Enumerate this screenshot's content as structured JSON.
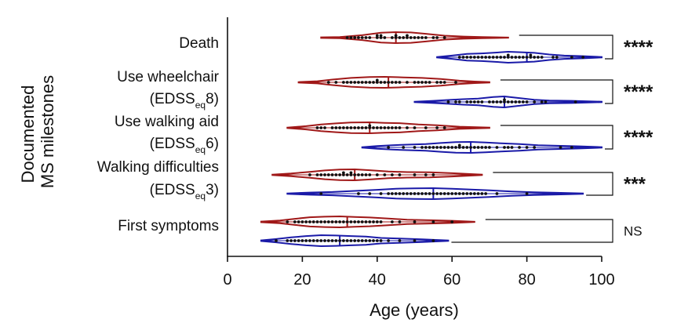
{
  "chart_data": {
    "type": "violin",
    "ylabel_lines": [
      "Documented",
      "MS milestones"
    ],
    "xlabel": "Age (years)",
    "xlim": [
      0,
      100
    ],
    "xticks": [
      "0",
      "20",
      "40",
      "60",
      "80",
      "100"
    ],
    "colors": {
      "red": "#a01818",
      "blue": "#1a1aa8"
    },
    "categories": [
      {
        "label_lines": [
          "Death"
        ],
        "significance": "****",
        "series": [
          {
            "color": "red",
            "min": 25,
            "max": 75,
            "median": 45,
            "kde": [
              [
                25,
                0.05
              ],
              [
                30,
                0.12
              ],
              [
                36,
                0.45
              ],
              [
                41,
                0.9
              ],
              [
                45,
                1.0
              ],
              [
                49,
                0.95
              ],
              [
                53,
                0.7
              ],
              [
                58,
                0.35
              ],
              [
                63,
                0.2
              ],
              [
                68,
                0.12
              ],
              [
                75,
                0.02
              ]
            ],
            "points": [
              32,
              33,
              34,
              35,
              36,
              37,
              38,
              40,
              40,
              41,
              41,
              42,
              44,
              45,
              45,
              46,
              47,
              48,
              48,
              49,
              50,
              51,
              52,
              53,
              55,
              56,
              58
            ]
          },
          {
            "color": "blue",
            "min": 56,
            "max": 100,
            "median": 80,
            "kde": [
              [
                56,
                0.05
              ],
              [
                60,
                0.3
              ],
              [
                64,
                0.6
              ],
              [
                68,
                0.7
              ],
              [
                72,
                0.85
              ],
              [
                75,
                1.0
              ],
              [
                79,
                0.9
              ],
              [
                82,
                0.8
              ],
              [
                86,
                0.5
              ],
              [
                90,
                0.3
              ],
              [
                95,
                0.2
              ],
              [
                100,
                0.05
              ]
            ],
            "points": [
              62,
              63,
              64,
              65,
              66,
              67,
              68,
              69,
              70,
              71,
              72,
              73,
              74,
              75,
              75,
              76,
              77,
              78,
              79,
              80,
              81,
              81,
              82,
              83,
              84,
              87,
              88,
              92,
              95
            ]
          }
        ]
      },
      {
        "label_lines": [
          "Use wheelchair",
          "(EDSS|eq|8)"
        ],
        "significance": "****",
        "series": [
          {
            "color": "red",
            "min": 19,
            "max": 70,
            "median": 43,
            "kde": [
              [
                19,
                0.05
              ],
              [
                24,
                0.2
              ],
              [
                28,
                0.5
              ],
              [
                33,
                0.8
              ],
              [
                38,
                0.95
              ],
              [
                42,
                1.0
              ],
              [
                47,
                0.9
              ],
              [
                52,
                0.8
              ],
              [
                57,
                0.6
              ],
              [
                62,
                0.3
              ],
              [
                66,
                0.15
              ],
              [
                70,
                0.04
              ]
            ],
            "points": [
              27,
              29,
              31,
              32,
              33,
              34,
              35,
              36,
              37,
              38,
              39,
              40,
              40,
              41,
              42,
              43,
              44,
              45,
              46,
              48,
              50,
              51,
              52,
              53,
              54,
              56,
              57,
              58,
              61
            ]
          },
          {
            "color": "blue",
            "min": 50,
            "max": 100,
            "median": 74,
            "kde": [
              [
                50,
                0.05
              ],
              [
                55,
                0.2
              ],
              [
                59,
                0.35
              ],
              [
                63,
                0.5
              ],
              [
                67,
                0.6
              ],
              [
                71,
                0.9
              ],
              [
                74,
                1.0
              ],
              [
                78,
                0.7
              ],
              [
                82,
                0.4
              ],
              [
                86,
                0.25
              ],
              [
                92,
                0.2
              ],
              [
                100,
                0.05
              ]
            ],
            "points": [
              59,
              61,
              62,
              64,
              65,
              66,
              67,
              68,
              70,
              71,
              72,
              73,
              74,
              74,
              75,
              76,
              77,
              78,
              79,
              80,
              82,
              84,
              85,
              93
            ]
          }
        ]
      },
      {
        "label_lines": [
          "Use walking aid",
          "(EDSS|eq|6)"
        ],
        "significance": "****",
        "series": [
          {
            "color": "red",
            "min": 16,
            "max": 70,
            "median": 38,
            "kde": [
              [
                16,
                0.05
              ],
              [
                21,
                0.3
              ],
              [
                25,
                0.6
              ],
              [
                29,
                0.8
              ],
              [
                33,
                0.95
              ],
              [
                38,
                1.0
              ],
              [
                42,
                0.9
              ],
              [
                46,
                0.85
              ],
              [
                51,
                0.6
              ],
              [
                56,
                0.45
              ],
              [
                62,
                0.2
              ],
              [
                70,
                0.04
              ]
            ],
            "points": [
              24,
              25,
              26,
              28,
              29,
              30,
              31,
              32,
              33,
              34,
              35,
              36,
              37,
              38,
              38,
              39,
              40,
              41,
              42,
              43,
              44,
              45,
              46,
              48,
              50,
              53,
              56,
              58
            ]
          },
          {
            "color": "blue",
            "min": 36,
            "max": 100,
            "median": 65,
            "kde": [
              [
                36,
                0.05
              ],
              [
                40,
                0.25
              ],
              [
                44,
                0.4
              ],
              [
                48,
                0.5
              ],
              [
                53,
                0.6
              ],
              [
                57,
                0.8
              ],
              [
                61,
                0.95
              ],
              [
                65,
                1.0
              ],
              [
                69,
                0.9
              ],
              [
                73,
                0.75
              ],
              [
                78,
                0.6
              ],
              [
                83,
                0.4
              ],
              [
                88,
                0.3
              ],
              [
                94,
                0.2
              ],
              [
                100,
                0.04
              ]
            ],
            "points": [
              43,
              47,
              50,
              52,
              53,
              54,
              55,
              56,
              57,
              58,
              59,
              60,
              61,
              62,
              62,
              63,
              64,
              65,
              66,
              67,
              68,
              69,
              70,
              72,
              74,
              75,
              76,
              78,
              80,
              82,
              89,
              92
            ]
          }
        ]
      },
      {
        "label_lines": [
          "Walking difficulties",
          "(EDSS|eq|3)"
        ],
        "significance": "***",
        "series": [
          {
            "color": "red",
            "min": 12,
            "max": 68,
            "median": 34,
            "kde": [
              [
                12,
                0.05
              ],
              [
                17,
                0.25
              ],
              [
                22,
                0.55
              ],
              [
                26,
                0.8
              ],
              [
                30,
                0.95
              ],
              [
                34,
                1.0
              ],
              [
                38,
                0.85
              ],
              [
                43,
                0.6
              ],
              [
                48,
                0.5
              ],
              [
                54,
                0.45
              ],
              [
                60,
                0.3
              ],
              [
                68,
                0.04
              ]
            ],
            "points": [
              22,
              24,
              25,
              26,
              27,
              28,
              29,
              30,
              31,
              31,
              32,
              33,
              33,
              34,
              35,
              36,
              37,
              38,
              40,
              42,
              44,
              46,
              50,
              53,
              55
            ]
          },
          {
            "color": "blue",
            "min": 16,
            "max": 95,
            "median": 55,
            "kde": [
              [
                16,
                0.05
              ],
              [
                22,
                0.2
              ],
              [
                28,
                0.3
              ],
              [
                34,
                0.5
              ],
              [
                40,
                0.7
              ],
              [
                45,
                0.9
              ],
              [
                50,
                0.95
              ],
              [
                55,
                1.0
              ],
              [
                60,
                0.9
              ],
              [
                65,
                0.75
              ],
              [
                70,
                0.6
              ],
              [
                76,
                0.4
              ],
              [
                82,
                0.25
              ],
              [
                88,
                0.15
              ],
              [
                95,
                0.04
              ]
            ],
            "points": [
              25,
              35,
              38,
              41,
              43,
              44,
              45,
              46,
              47,
              48,
              49,
              50,
              51,
              52,
              53,
              54,
              55,
              56,
              57,
              58,
              59,
              60,
              61,
              62,
              63,
              64,
              65,
              66,
              67,
              68,
              69,
              72,
              80
            ]
          }
        ]
      },
      {
        "label_lines": [
          "First symptoms"
        ],
        "significance": "NS",
        "series": [
          {
            "color": "red",
            "min": 9,
            "max": 66,
            "median": 32,
            "kde": [
              [
                9,
                0.05
              ],
              [
                14,
                0.25
              ],
              [
                18,
                0.55
              ],
              [
                22,
                0.85
              ],
              [
                26,
                0.95
              ],
              [
                30,
                1.0
              ],
              [
                34,
                0.9
              ],
              [
                38,
                0.8
              ],
              [
                43,
                0.6
              ],
              [
                48,
                0.4
              ],
              [
                54,
                0.3
              ],
              [
                60,
                0.2
              ],
              [
                66,
                0.03
              ]
            ],
            "points": [
              16,
              18,
              19,
              20,
              21,
              22,
              23,
              24,
              25,
              26,
              27,
              28,
              29,
              30,
              31,
              32,
              33,
              34,
              35,
              36,
              37,
              38,
              39,
              40,
              41,
              44,
              46,
              50,
              55,
              60
            ]
          },
          {
            "color": "blue",
            "min": 9,
            "max": 59,
            "median": 30,
            "kde": [
              [
                9,
                0.05
              ],
              [
                13,
                0.3
              ],
              [
                17,
                0.6
              ],
              [
                21,
                0.85
              ],
              [
                25,
                1.0
              ],
              [
                29,
                0.95
              ],
              [
                33,
                0.85
              ],
              [
                37,
                0.75
              ],
              [
                41,
                0.5
              ],
              [
                46,
                0.4
              ],
              [
                52,
                0.25
              ],
              [
                59,
                0.04
              ]
            ],
            "points": [
              13,
              16,
              17,
              18,
              19,
              20,
              21,
              22,
              23,
              24,
              25,
              26,
              27,
              28,
              29,
              30,
              31,
              32,
              33,
              34,
              35,
              36,
              37,
              38,
              39,
              40,
              41,
              43,
              46,
              50,
              55
            ]
          }
        ]
      }
    ]
  }
}
